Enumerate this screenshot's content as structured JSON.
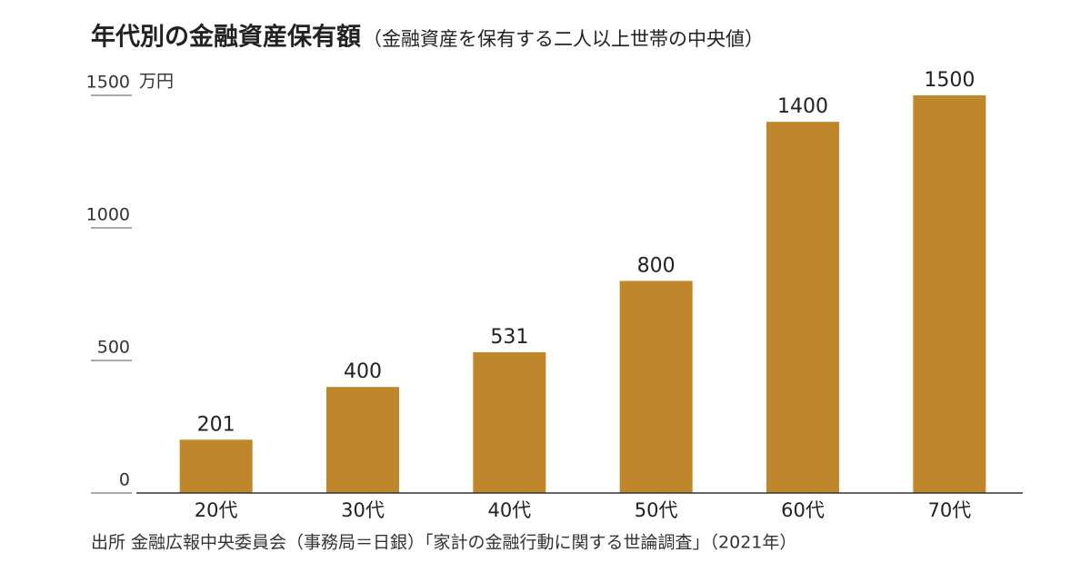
{
  "chart_data": {
    "type": "bar",
    "title": "年代別の金融資産保有額",
    "subtitle": "（金融資産を保有する二人以上世帯の中央値）",
    "y_unit": "万円",
    "categories": [
      "20代",
      "30代",
      "40代",
      "50代",
      "60代",
      "70代"
    ],
    "values": [
      201,
      400,
      531,
      800,
      1400,
      1500
    ],
    "color": "#c0862c",
    "ylim": [
      0,
      1500
    ],
    "yticks": [
      0,
      500,
      1000,
      1500
    ],
    "grid": false,
    "source": "出所 金融広報中央委員会（事務局＝日銀）「家計の金融行動に関する世論調査」（2021年）"
  }
}
